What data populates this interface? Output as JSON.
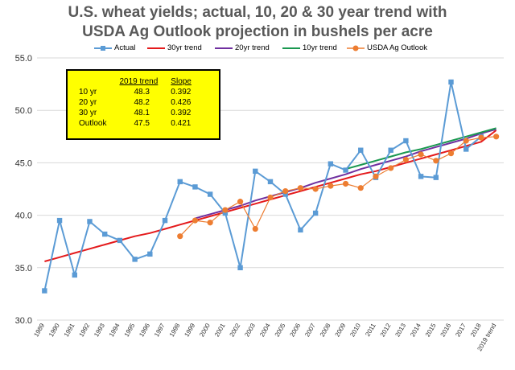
{
  "chart_data": {
    "type": "line",
    "title": "U.S. wheat yields; actual, 10, 20 & 30 year trend with USDA Ag Outlook projection in bushels per acre",
    "title_line1": "U.S. wheat yields; actual, 10, 20 & 30 year trend with",
    "title_line2": "USDA Ag Outlook projection in bushels per acre",
    "xlabel": "",
    "ylabel": "",
    "ylim": [
      30.0,
      55.0
    ],
    "y_ticks": [
      "55.0",
      "50.0",
      "45.0",
      "40.0",
      "35.0",
      "30.0"
    ],
    "y_tick_values": [
      55,
      50,
      45,
      40,
      35,
      30
    ],
    "grid": "horizontal",
    "legend_position": "top",
    "categories": [
      "1989",
      "1990",
      "1991",
      "1992",
      "1993",
      "1994",
      "1995",
      "1996",
      "1997",
      "1998",
      "1999",
      "2000",
      "2001",
      "2002",
      "2003",
      "2004",
      "2005",
      "2006",
      "2007",
      "2008",
      "2009",
      "2010",
      "2011",
      "2012",
      "2013",
      "2014",
      "2015",
      "2016",
      "2017",
      "2018",
      "2019 trend"
    ],
    "series": [
      {
        "name": "Actual",
        "color": "#5b9bd5",
        "marker": "square",
        "values": [
          32.8,
          39.5,
          34.3,
          39.4,
          38.2,
          37.6,
          35.8,
          36.3,
          39.5,
          43.2,
          42.7,
          42.0,
          40.2,
          35.0,
          44.2,
          43.2,
          42.0,
          38.6,
          40.2,
          44.9,
          44.3,
          46.2,
          43.6,
          46.2,
          47.1,
          43.7,
          43.6,
          52.7,
          46.3,
          47.5,
          null
        ]
      },
      {
        "name": "30yr trend",
        "color": "#e41a1c",
        "marker": "none",
        "values": [
          35.6,
          36.0,
          36.4,
          36.8,
          37.2,
          37.6,
          38.0,
          38.3,
          38.7,
          39.1,
          39.5,
          39.9,
          40.3,
          40.7,
          41.1,
          41.5,
          41.9,
          42.3,
          42.7,
          43.1,
          43.5,
          43.9,
          44.2,
          44.6,
          45.0,
          45.4,
          45.8,
          46.2,
          46.6,
          47.0,
          48.1
        ]
      },
      {
        "name": "20yr trend",
        "color": "#7030a0",
        "marker": "none",
        "values": [
          null,
          null,
          null,
          null,
          null,
          null,
          null,
          null,
          null,
          null,
          39.7,
          40.1,
          40.5,
          40.9,
          41.4,
          41.8,
          42.2,
          42.6,
          43.1,
          43.5,
          43.9,
          44.4,
          44.8,
          45.2,
          45.6,
          46.1,
          46.5,
          46.9,
          47.3,
          47.8,
          48.2
        ]
      },
      {
        "name": "10yr trend",
        "color": "#1a9850",
        "marker": "none",
        "values": [
          null,
          null,
          null,
          null,
          null,
          null,
          null,
          null,
          null,
          null,
          null,
          null,
          null,
          null,
          null,
          null,
          null,
          null,
          null,
          null,
          44.4,
          44.8,
          45.2,
          45.6,
          46.0,
          46.3,
          46.7,
          47.1,
          47.5,
          47.9,
          48.3
        ]
      },
      {
        "name": "USDA Ag Outlook",
        "color": "#ed7d31",
        "marker": "circle",
        "values": [
          null,
          null,
          null,
          null,
          null,
          null,
          null,
          null,
          null,
          38.0,
          39.5,
          39.3,
          40.5,
          41.3,
          38.7,
          41.7,
          42.3,
          42.6,
          42.5,
          42.8,
          43.0,
          42.6,
          43.7,
          44.5,
          45.3,
          45.8,
          45.2,
          45.9,
          47.1,
          47.4,
          47.5
        ]
      }
    ],
    "stats_table": {
      "headers": [
        "",
        "2019 trend",
        "Slope"
      ],
      "rows": [
        [
          "10 yr",
          "48.3",
          "0.392"
        ],
        [
          "20 yr",
          "48.2",
          "0.426"
        ],
        [
          "30 yr",
          "48.1",
          "0.392"
        ],
        [
          "Outlook",
          "47.5",
          "0.421"
        ]
      ],
      "background": "#ffff00"
    }
  }
}
